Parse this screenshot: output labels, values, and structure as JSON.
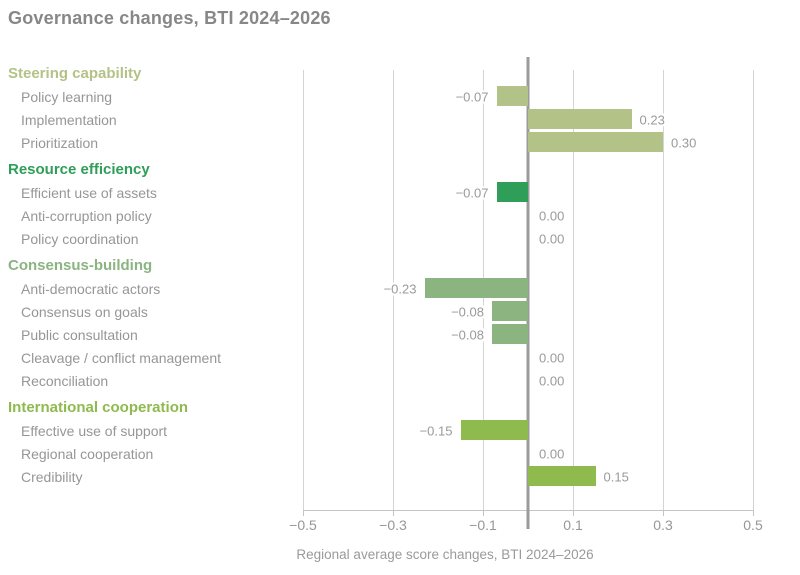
{
  "title": "Governance changes, BTI 2024–2026",
  "footer": "Regional average score changes, BTI 2024–2026",
  "colors": {
    "title_text": "#878787",
    "item_text": "#969696",
    "value_text": "#9a9a9a",
    "gridline": "#d4d4d4",
    "axis_line": "#c4c4c4",
    "zero_line": "#9b9b9b"
  },
  "chart_data": {
    "type": "bar",
    "orientation": "horizontal",
    "title": "Governance changes, BTI 2024–2026",
    "xlabel": "Regional average score changes, BTI 2024–2026",
    "xlim": [
      -0.5,
      0.5
    ],
    "grid": true,
    "xticks": [
      {
        "value": -0.5,
        "label": "−0.5"
      },
      {
        "value": -0.3,
        "label": "−0.3"
      },
      {
        "value": -0.1,
        "label": "−0.1"
      },
      {
        "value": 0.1,
        "label": "0.1"
      },
      {
        "value": 0.3,
        "label": "0.3"
      },
      {
        "value": 0.5,
        "label": "0.5"
      }
    ],
    "groups": [
      {
        "name": "Steering capability",
        "color": "#b3c287",
        "items": [
          {
            "label": "Policy learning",
            "value": -0.07,
            "display": "−0.07"
          },
          {
            "label": "Implementation",
            "value": 0.23,
            "display": "0.23"
          },
          {
            "label": "Prioritization",
            "value": 0.3,
            "display": "0.30"
          }
        ]
      },
      {
        "name": "Resource efficiency",
        "color": "#2e9e58",
        "items": [
          {
            "label": "Efficient use of assets",
            "value": -0.07,
            "display": "−0.07"
          },
          {
            "label": "Anti-corruption policy",
            "value": 0.0,
            "display": "0.00"
          },
          {
            "label": "Policy coordination",
            "value": 0.0,
            "display": "0.00"
          }
        ]
      },
      {
        "name": "Consensus-building",
        "color": "#8bb481",
        "items": [
          {
            "label": "Anti-democratic actors",
            "value": -0.23,
            "display": "−0.23"
          },
          {
            "label": "Consensus on goals",
            "value": -0.08,
            "display": "−0.08"
          },
          {
            "label": "Public consultation",
            "value": -0.08,
            "display": "−0.08"
          },
          {
            "label": "Cleavage / conflict management",
            "value": 0.0,
            "display": "0.00"
          },
          {
            "label": "Reconciliation",
            "value": 0.0,
            "display": "0.00"
          }
        ]
      },
      {
        "name": "International cooperation",
        "color": "#8eba4e",
        "items": [
          {
            "label": "Effective use of support",
            "value": -0.15,
            "display": "−0.15"
          },
          {
            "label": "Regional cooperation",
            "value": 0.0,
            "display": "0.00"
          },
          {
            "label": "Credibility",
            "value": 0.15,
            "display": "0.15"
          }
        ]
      }
    ]
  }
}
